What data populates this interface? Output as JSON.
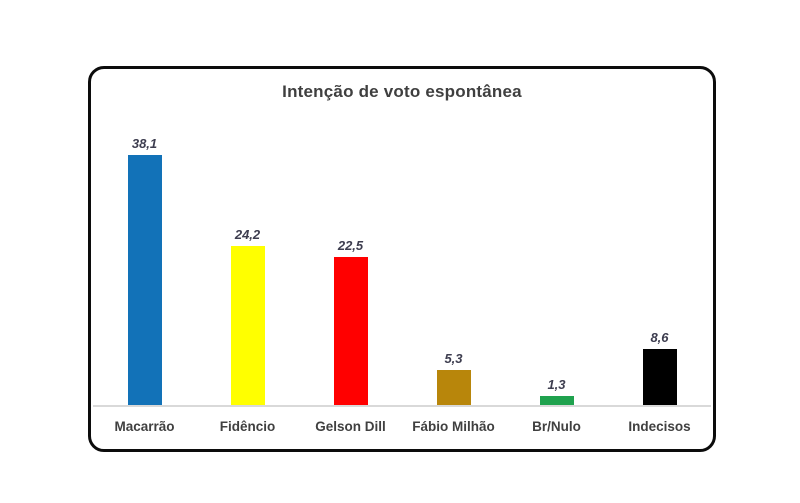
{
  "page": {
    "background_color": "#FFFFFF",
    "frame_border_color": "#0C0C0C"
  },
  "chart_data": {
    "type": "bar",
    "title": "Intenção de voto espontânea",
    "categories": [
      "Macarrão",
      "Fidêncio",
      "Gelson Dill",
      "Fábio Milhão",
      "Br/Nulo",
      "Indecisos"
    ],
    "values": [
      38.1,
      24.2,
      22.5,
      5.3,
      1.3,
      8.6
    ],
    "value_labels": [
      "38,1",
      "24,2",
      "22,5",
      "5,3",
      "1,3",
      "8,6"
    ],
    "bar_colors": [
      "#1272B8",
      "#FFFF00",
      "#FF0000",
      "#B8860B",
      "#1FA24E",
      "#000000"
    ],
    "xlabel": "",
    "ylabel": "",
    "ylim": [
      0,
      40
    ],
    "grid": false,
    "legend": false,
    "axis_line_color": "#D9D9D9",
    "value_label_color": "#3D3D4F",
    "category_label_color": "#404040",
    "title_color": "#3F3F3F"
  }
}
